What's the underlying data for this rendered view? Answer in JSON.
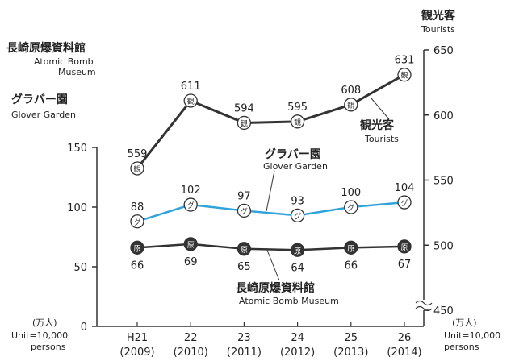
{
  "chart_data": {
    "type": "line",
    "categories": [
      "H21",
      "22",
      "23",
      "24",
      "25",
      "26"
    ],
    "categories_sub": [
      "(2009)",
      "(2010)",
      "(2011)",
      "(2012)",
      "(2013)",
      "(2014)"
    ],
    "series": [
      {
        "name": "観光客",
        "name_en": "Tourists",
        "axis": "right",
        "marker": "観",
        "color": "#333333",
        "values": [
          559,
          611,
          594,
          595,
          608,
          631
        ]
      },
      {
        "name": "グラバー園",
        "name_en": "Glover Garden",
        "axis": "left",
        "marker": "グ",
        "color": "#2ea3dc",
        "values": [
          88,
          102,
          97,
          93,
          100,
          104
        ]
      },
      {
        "name": "長崎原爆資料館",
        "name_en": "Atomic Bomb Museum",
        "axis": "left",
        "marker": "原",
        "color": "#333333",
        "values": [
          66,
          69,
          65,
          64,
          66,
          67
        ]
      }
    ],
    "left_axis": {
      "title_lines": [
        "長崎原爆資料館",
        "Atomic Bomb",
        "Museum",
        "グラバー園",
        "Glover Garden"
      ],
      "ticks": [
        0,
        50,
        100,
        150
      ],
      "ylim": [
        0,
        150
      ],
      "unit_lines": [
        "(万人)",
        "Unit=10,000",
        "persons"
      ]
    },
    "right_axis": {
      "title_lines": [
        "観光客",
        "Tourists"
      ],
      "ticks": [
        450,
        500,
        550,
        600,
        650
      ],
      "ylim": [
        400,
        650
      ],
      "broken": true,
      "unit_lines": [
        "(万人)",
        "Unit=10,000",
        "persons"
      ]
    },
    "annotations": {
      "tourists": [
        "観光客",
        "Tourists"
      ],
      "glover": [
        "グラバー園",
        "Glover Garden"
      ],
      "museum": [
        "長崎原爆資料館",
        "Atomic Bomb Museum"
      ]
    },
    "grid": false
  }
}
